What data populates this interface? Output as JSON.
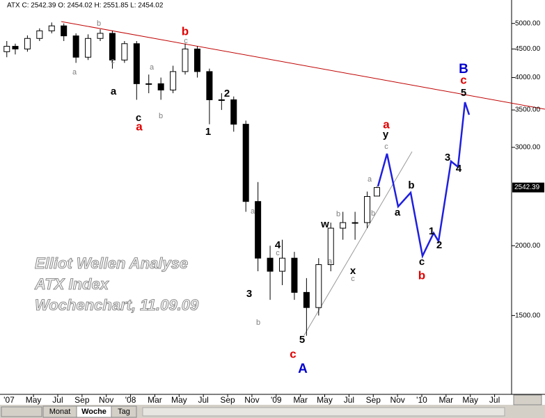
{
  "header": "ATX C: 2542.39 O: 2454.02 H: 2551.85 L: 2454.02",
  "chart_data": {
    "type": "candlestick",
    "log_scale": true,
    "up_color": "#ffffff",
    "down_color": "#000000",
    "x": [
      1.8,
      2.5,
      3.5,
      4.5,
      5.5,
      6.5,
      7.5,
      8.5,
      9.5,
      10.5,
      11.5,
      12.5,
      13.5,
      14.5,
      15.5,
      16.5,
      17.5,
      18.5,
      19.5,
      20.5,
      21.5,
      22.5,
      23.5,
      24.5,
      25.5,
      26.5,
      27.5,
      28.5,
      29.5,
      30.5,
      31.5,
      32.3
    ],
    "open": [
      4450,
      4550,
      4500,
      4700,
      4850,
      4950,
      4750,
      4350,
      4700,
      4800,
      4300,
      4600,
      3900,
      3900,
      3800,
      4100,
      4500,
      4100,
      3650,
      3650,
      3300,
      2400,
      1900,
      1800,
      1900,
      1650,
      1550,
      1850,
      2150,
      2200,
      2200,
      2454.02
    ],
    "high": [
      4650,
      4600,
      4760,
      4900,
      5020,
      5000,
      4800,
      4780,
      4880,
      4850,
      4650,
      4650,
      4050,
      4000,
      4200,
      4600,
      4550,
      4150,
      3750,
      3700,
      3350,
      2600,
      2000,
      2050,
      1950,
      1750,
      1900,
      2200,
      2300,
      2300,
      2500,
      2551.85
    ],
    "low": [
      4350,
      4400,
      4450,
      4650,
      4800,
      4650,
      4250,
      4300,
      4650,
      4150,
      4250,
      3650,
      3750,
      3650,
      3750,
      4050,
      4000,
      3300,
      3500,
      3200,
      2300,
      1800,
      1600,
      1700,
      1600,
      1380,
      1500,
      1800,
      2050,
      2050,
      2150,
      2454.02
    ],
    "close": [
      4550,
      4500,
      4700,
      4850,
      4950,
      4750,
      4350,
      4700,
      4800,
      4300,
      4600,
      3900,
      3900,
      3800,
      4100,
      4500,
      4100,
      3650,
      3650,
      3300,
      2400,
      1900,
      1800,
      1900,
      1650,
      1550,
      1850,
      2150,
      2200,
      2200,
      2450,
      2542.39
    ],
    "last_label": "2542.39",
    "xlim": [
      1.24,
      43.4
    ],
    "ylim": [
      1090,
      5230
    ],
    "xticks": [
      {
        "value": 0,
        "label": "'07"
      },
      {
        "value": 4,
        "label": "May"
      },
      {
        "value": 6,
        "label": "Jul"
      },
      {
        "value": 8,
        "label": "Sep"
      },
      {
        "value": 10,
        "label": "Nov"
      },
      {
        "value": 12,
        "label": "'08"
      },
      {
        "value": 14,
        "label": "Mar"
      },
      {
        "value": 16,
        "label": "May"
      },
      {
        "value": 18,
        "label": "Jul"
      },
      {
        "value": 20,
        "label": "Sep"
      },
      {
        "value": 22,
        "label": "Nov"
      },
      {
        "value": 24,
        "label": "'09"
      },
      {
        "value": 26,
        "label": "Mar"
      },
      {
        "value": 28,
        "label": "May"
      },
      {
        "value": 30,
        "label": "Jul"
      },
      {
        "value": 32,
        "label": "Sep"
      },
      {
        "value": 34,
        "label": "Nov"
      },
      {
        "value": 36,
        "label": "'10"
      },
      {
        "value": 38,
        "label": "Mar"
      },
      {
        "value": 40,
        "label": "May"
      },
      {
        "value": 42,
        "label": "Jul"
      }
    ],
    "yticks": [
      {
        "value": 5000,
        "label": "5000.00"
      },
      {
        "value": 4500,
        "label": "4500.00"
      },
      {
        "value": 4000,
        "label": "4000.00"
      },
      {
        "value": 3500,
        "label": "3500.00"
      },
      {
        "value": 3000,
        "label": "3000.00"
      },
      {
        "value": 2000,
        "label": "2000.00"
      },
      {
        "value": 1500,
        "label": "1500.00"
      }
    ],
    "watermark": [
      "Elliot Wellen Analyse",
      "ATX Index",
      "Wochenchart, 11.09.09"
    ],
    "annotations": [
      {
        "text": "b",
        "color": "#808080"
      },
      {
        "text": "a",
        "color": "#808080"
      },
      {
        "text": "c",
        "color": "#808080"
      },
      {
        "text": "a",
        "color": "#808080"
      },
      {
        "text": "b",
        "color": "#808080"
      },
      {
        "text": "c",
        "color": "#808080"
      },
      {
        "text": "a",
        "color": "#808080"
      },
      {
        "text": "c",
        "color": "#808080"
      },
      {
        "text": "b",
        "color": "#808080"
      },
      {
        "text": "b",
        "color": "#808080"
      },
      {
        "text": "a",
        "color": "#808080"
      },
      {
        "text": "c",
        "color": "#808080"
      },
      {
        "text": "a",
        "color": "#808080"
      },
      {
        "text": "b",
        "color": "#808080"
      },
      {
        "text": "c",
        "color": "#808080"
      },
      {
        "text": "a",
        "color": "#000000"
      },
      {
        "text": "c",
        "color": "#000000"
      },
      {
        "text": "2",
        "color": "#000000"
      },
      {
        "text": "1",
        "color": "#000000"
      },
      {
        "text": "4",
        "color": "#000000"
      },
      {
        "text": "3",
        "color": "#000000"
      },
      {
        "text": "5",
        "color": "#000000"
      },
      {
        "text": "w",
        "color": "#000000"
      },
      {
        "text": "x",
        "color": "#000000"
      },
      {
        "text": "y",
        "color": "#000000"
      },
      {
        "text": "a",
        "color": "#000000"
      },
      {
        "text": "b",
        "color": "#000000"
      },
      {
        "text": "c",
        "color": "#000000"
      },
      {
        "text": "1",
        "color": "#000000"
      },
      {
        "text": "2",
        "color": "#000000"
      },
      {
        "text": "3",
        "color": "#000000"
      },
      {
        "text": "4",
        "color": "#000000"
      },
      {
        "text": "5",
        "color": "#000000"
      },
      {
        "text": "b",
        "color": "#e00000"
      },
      {
        "text": "a",
        "color": "#e00000"
      },
      {
        "text": "a",
        "color": "#e00000"
      },
      {
        "text": "c",
        "color": "#e00000"
      },
      {
        "text": "b",
        "color": "#e00000"
      },
      {
        "text": "c",
        "color": "#e00000"
      },
      {
        "text": "A",
        "color": "#0000cc"
      },
      {
        "text": "B",
        "color": "#0000cc"
      }
    ]
  },
  "tabs": [
    "Monat",
    "Woche",
    "Tag"
  ]
}
